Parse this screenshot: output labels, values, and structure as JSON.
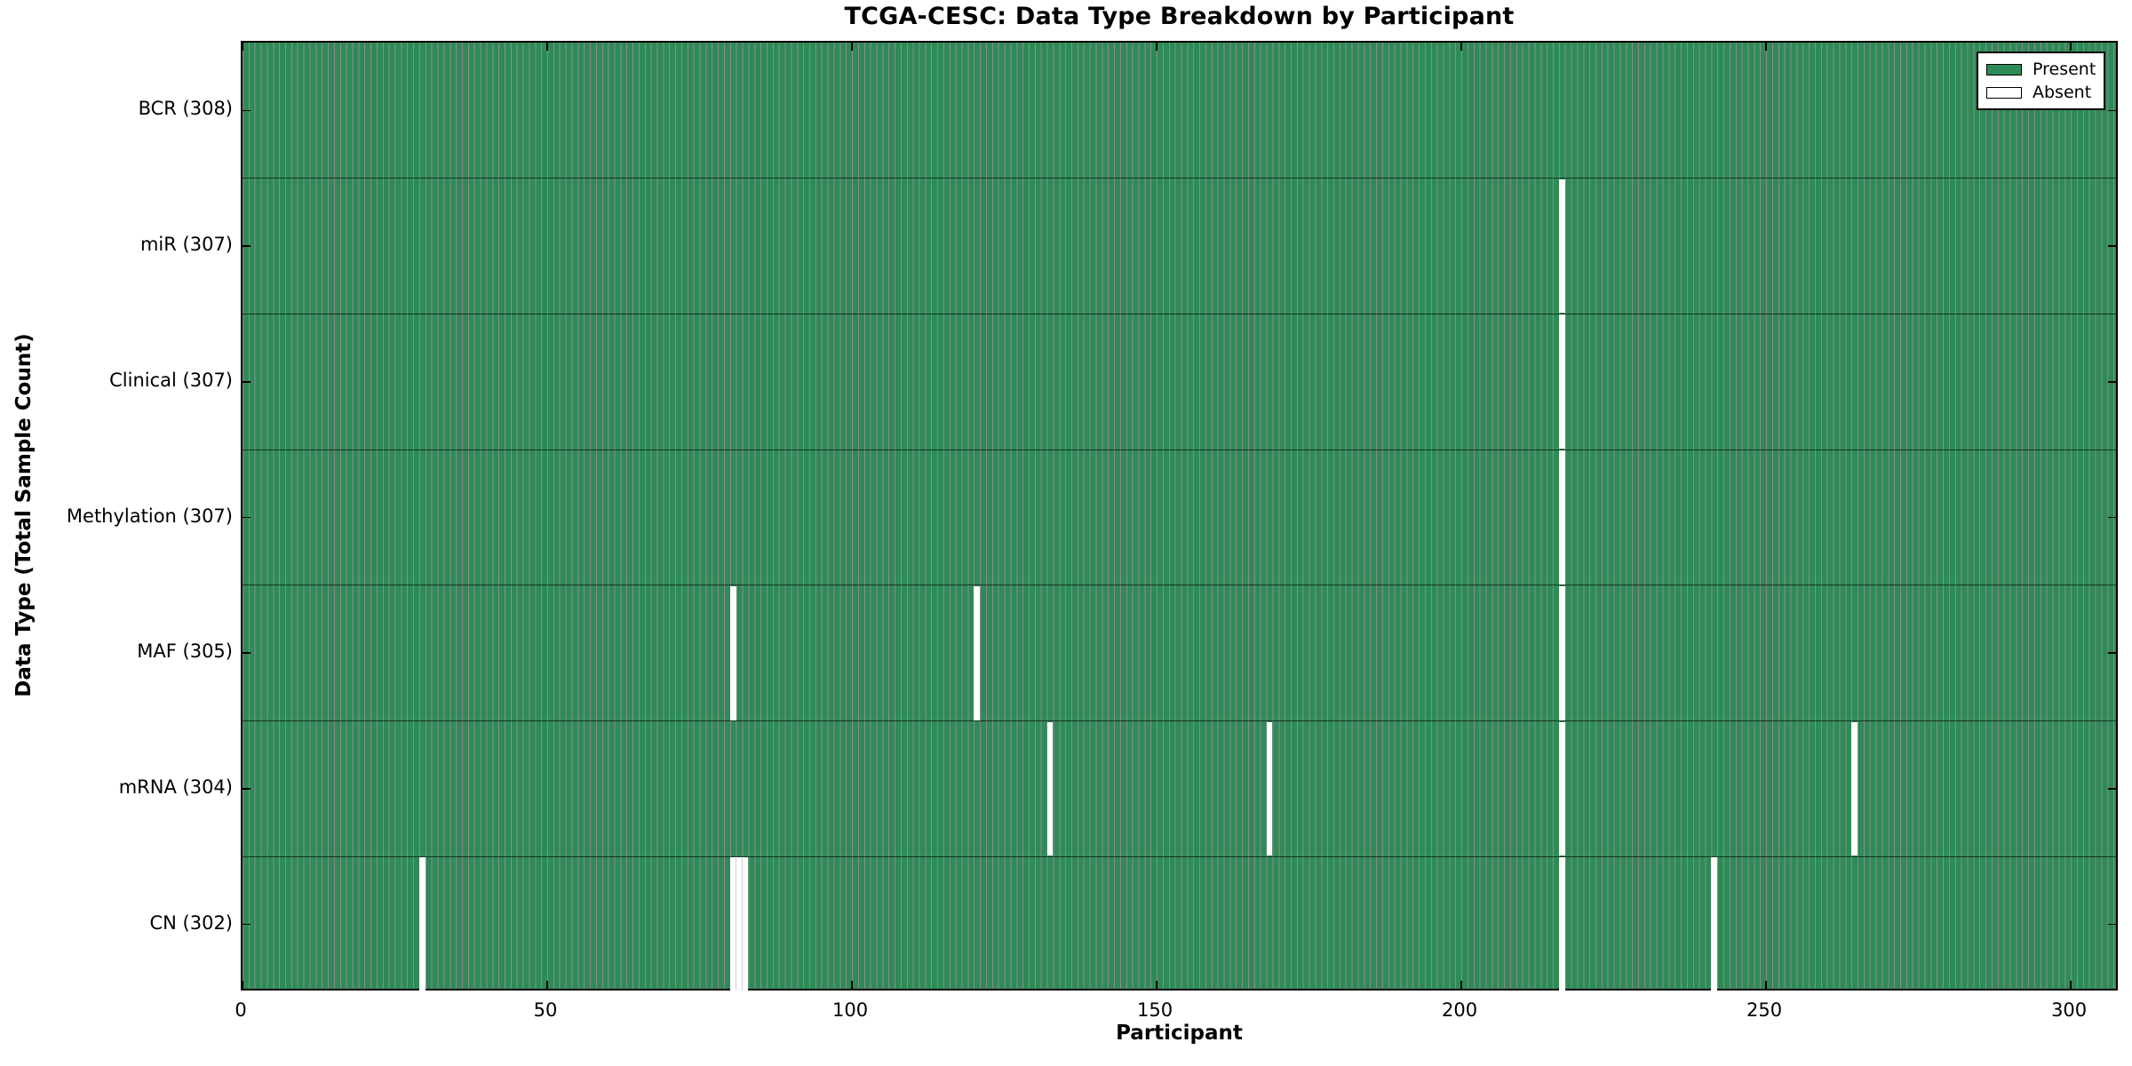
{
  "chart_data": {
    "type": "heatmap",
    "title": "TCGA-CESC: Data Type Breakdown by Participant",
    "xlabel": "Participant",
    "ylabel": "Data Type (Total Sample Count)",
    "x_ticks": [
      0,
      50,
      100,
      150,
      200,
      250,
      300
    ],
    "x_range": [
      0,
      308
    ],
    "n_participants": 308,
    "grid": false,
    "rows": [
      {
        "label": "BCR (308)",
        "data_type": "BCR",
        "total": 308,
        "absent_participants": []
      },
      {
        "label": "miR (307)",
        "data_type": "miR",
        "total": 307,
        "absent_participants": [
          216
        ]
      },
      {
        "label": "Clinical (307)",
        "data_type": "Clinical",
        "total": 307,
        "absent_participants": [
          216
        ]
      },
      {
        "label": "Methylation (307)",
        "data_type": "Methylation",
        "total": 307,
        "absent_participants": [
          216
        ]
      },
      {
        "label": "MAF (305)",
        "data_type": "MAF",
        "total": 305,
        "absent_participants": [
          80,
          120,
          216
        ]
      },
      {
        "label": "mRNA (304)",
        "data_type": "mRNA",
        "total": 304,
        "absent_participants": [
          132,
          168,
          216,
          264
        ]
      },
      {
        "label": "CN (302)",
        "data_type": "CN",
        "total": 302,
        "absent_participants": [
          29,
          80,
          81,
          82,
          216,
          241
        ]
      }
    ],
    "legend": {
      "position": "upper right",
      "entries": [
        {
          "label": "Present",
          "color": "#2E8B57"
        },
        {
          "label": "Absent",
          "color": "#FFFFFF"
        }
      ]
    },
    "colors": {
      "present": "#2E8B57",
      "absent": "#FFFFFF",
      "bar_edge": "rgba(0,0,0,0.45)",
      "row_divider": "rgba(0,0,0,0.62)",
      "axis": "#000000",
      "text": "#000000",
      "background": "#FFFFFF"
    }
  }
}
